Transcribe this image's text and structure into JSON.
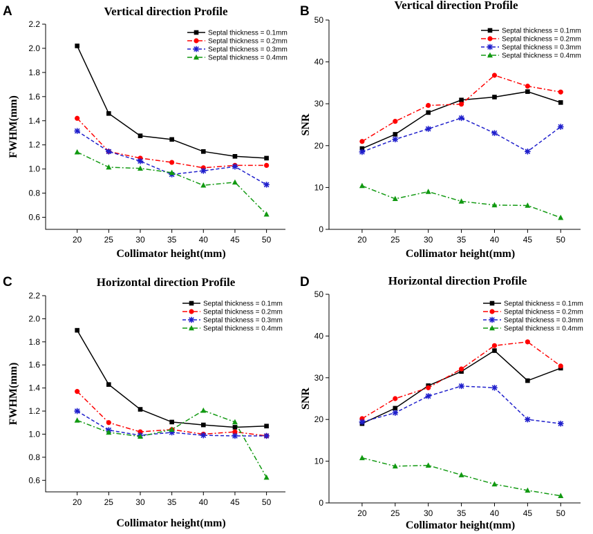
{
  "colors": {
    "black": "#000000",
    "red": "#ff0000",
    "blue": "#1f1fcc",
    "green": "#119911"
  },
  "chart_data": [
    {
      "type": "line",
      "panel": "A",
      "title": "Vertical direction Profile",
      "xlabel": "Collimator height(mm)",
      "ylabel": "FWHM(mm)",
      "x": [
        20,
        25,
        30,
        35,
        40,
        45,
        50
      ],
      "xticks": [
        "20",
        "25",
        "30",
        "35",
        "40",
        "45",
        "50"
      ],
      "xlim": [
        15,
        53
      ],
      "ylim": [
        0.5,
        2.2
      ],
      "yticks": [
        "0.6",
        "0.8",
        "1.0",
        "1.2",
        "1.4",
        "1.6",
        "1.8",
        "2.0",
        "2.2"
      ],
      "series": [
        {
          "name": "Septal thickness = 0.1mm",
          "color": "#000000",
          "marker": "square",
          "dash": "solid",
          "values": [
            2.02,
            1.46,
            1.275,
            1.245,
            1.145,
            1.105,
            1.09
          ]
        },
        {
          "name": "Septal thickness = 0.2mm",
          "color": "#ff0000",
          "marker": "circle",
          "dash": "dashdot",
          "values": [
            1.42,
            1.145,
            1.09,
            1.055,
            1.01,
            1.03,
            1.03
          ]
        },
        {
          "name": "Septal thickness = 0.3mm",
          "color": "#1f1fcc",
          "marker": "star",
          "dash": "dash",
          "values": [
            1.315,
            1.145,
            1.065,
            0.955,
            0.985,
            1.02,
            0.87
          ]
        },
        {
          "name": "Septal thickness = 0.4mm",
          "color": "#119911",
          "marker": "triangle",
          "dash": "dashdot",
          "values": [
            1.14,
            1.015,
            1.005,
            0.97,
            0.865,
            0.89,
            0.625
          ]
        }
      ]
    },
    {
      "type": "line",
      "panel": "B",
      "title": "Vertical direction Profile",
      "xlabel": "Collimator height(mm)",
      "ylabel": "SNR",
      "x": [
        20,
        25,
        30,
        35,
        40,
        45,
        50
      ],
      "xticks": [
        "20",
        "25",
        "30",
        "35",
        "40",
        "45",
        "50"
      ],
      "xlim": [
        15,
        53
      ],
      "ylim": [
        0,
        50
      ],
      "yticks": [
        "0",
        "10",
        "20",
        "30",
        "40",
        "50"
      ],
      "series": [
        {
          "name": "Septal thickness = 0.1mm",
          "color": "#000000",
          "marker": "square",
          "dash": "solid",
          "values": [
            19.3,
            22.7,
            27.9,
            30.9,
            31.6,
            32.9,
            30.3
          ]
        },
        {
          "name": "Septal thickness = 0.2mm",
          "color": "#ff0000",
          "marker": "circle",
          "dash": "dashdot",
          "values": [
            21.0,
            25.8,
            29.6,
            29.9,
            36.8,
            34.2,
            32.8
          ]
        },
        {
          "name": "Septal thickness = 0.3mm",
          "color": "#1f1fcc",
          "marker": "star",
          "dash": "dash",
          "values": [
            18.5,
            21.5,
            24.0,
            26.6,
            23.0,
            18.6,
            24.5
          ]
        },
        {
          "name": "Septal thickness = 0.4mm",
          "color": "#119911",
          "marker": "triangle",
          "dash": "dashdot",
          "values": [
            10.4,
            7.3,
            9.0,
            6.7,
            5.8,
            5.7,
            2.8
          ]
        }
      ]
    },
    {
      "type": "line",
      "panel": "C",
      "title": "Horizontal direction Profile",
      "xlabel": "Collimator height(mm)",
      "ylabel": "FWHM(mm)",
      "x": [
        20,
        25,
        30,
        35,
        40,
        45,
        50
      ],
      "xticks": [
        "20",
        "25",
        "30",
        "35",
        "40",
        "45",
        "50"
      ],
      "xlim": [
        15,
        53
      ],
      "ylim": [
        0.5,
        2.2
      ],
      "yticks": [
        "0.6",
        "0.8",
        "1.0",
        "1.2",
        "1.4",
        "1.6",
        "1.8",
        "2.0",
        "2.2"
      ],
      "series": [
        {
          "name": "Septal thickness = 0.1mm",
          "color": "#000000",
          "marker": "square",
          "dash": "solid",
          "values": [
            1.9,
            1.43,
            1.215,
            1.105,
            1.08,
            1.06,
            1.07
          ]
        },
        {
          "name": "Septal thickness = 0.2mm",
          "color": "#ff0000",
          "marker": "circle",
          "dash": "dashdot",
          "values": [
            1.37,
            1.1,
            1.02,
            1.04,
            1.0,
            1.02,
            0.985
          ]
        },
        {
          "name": "Septal thickness = 0.3mm",
          "color": "#1f1fcc",
          "marker": "star",
          "dash": "dash",
          "values": [
            1.2,
            1.035,
            0.99,
            1.015,
            0.99,
            0.985,
            0.985
          ]
        },
        {
          "name": "Septal thickness = 0.4mm",
          "color": "#119911",
          "marker": "triangle",
          "dash": "dashdot",
          "values": [
            1.12,
            1.015,
            0.98,
            1.04,
            1.205,
            1.105,
            0.625
          ]
        }
      ]
    },
    {
      "type": "line",
      "panel": "D",
      "title": "Horizontal direction Profile",
      "xlabel": "Collimator height(mm)",
      "ylabel": "SNR",
      "x": [
        20,
        25,
        30,
        35,
        40,
        45,
        50
      ],
      "xticks": [
        "20",
        "25",
        "30",
        "35",
        "40",
        "45",
        "50"
      ],
      "xlim": [
        15,
        53
      ],
      "ylim": [
        0,
        50
      ],
      "yticks": [
        "0",
        "10",
        "20",
        "30",
        "40",
        "50"
      ],
      "series": [
        {
          "name": "Septal thickness = 0.1mm",
          "color": "#000000",
          "marker": "square",
          "dash": "solid",
          "values": [
            19.0,
            22.7,
            28.1,
            31.5,
            36.5,
            29.3,
            32.3
          ]
        },
        {
          "name": "Septal thickness = 0.2mm",
          "color": "#ff0000",
          "marker": "circle",
          "dash": "dashdot",
          "values": [
            20.2,
            25.0,
            27.6,
            32.1,
            37.7,
            38.6,
            32.8
          ]
        },
        {
          "name": "Septal thickness = 0.3mm",
          "color": "#1f1fcc",
          "marker": "star",
          "dash": "dash",
          "values": [
            19.4,
            21.6,
            25.6,
            28.0,
            27.6,
            20.0,
            19.0
          ]
        },
        {
          "name": "Septal thickness = 0.4mm",
          "color": "#119911",
          "marker": "triangle",
          "dash": "dashdot",
          "values": [
            10.8,
            8.8,
            9.0,
            6.7,
            4.5,
            3.0,
            1.7
          ]
        }
      ]
    }
  ]
}
